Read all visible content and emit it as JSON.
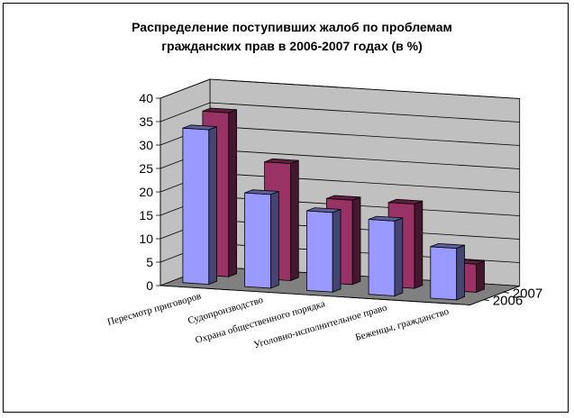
{
  "chart_data": {
    "type": "bar",
    "title_line1": "Распределение поступивших жалоб по проблемам",
    "title_line2": "гражданских прав в 2006-2007 годах (в %)",
    "categories": [
      "Пересмотр приговоров",
      "Судопроизводство",
      "Охрана общественного порядка",
      "Уголовно-исполнительное право",
      "Беженцы, гражданство"
    ],
    "series": [
      {
        "name": "2006",
        "values": [
          33,
          20,
          17,
          16,
          11
        ],
        "color": "#9999ff"
      },
      {
        "name": "2007",
        "values": [
          35,
          25,
          18,
          18,
          6
        ],
        "color": "#993366"
      }
    ],
    "ylim": [
      0,
      40
    ],
    "yticks": [
      0,
      5,
      10,
      15,
      20,
      25,
      30,
      35,
      40
    ],
    "grid": true,
    "walls_color": "#c0c0c0",
    "floor_color": "#808080",
    "projection": "3d"
  }
}
